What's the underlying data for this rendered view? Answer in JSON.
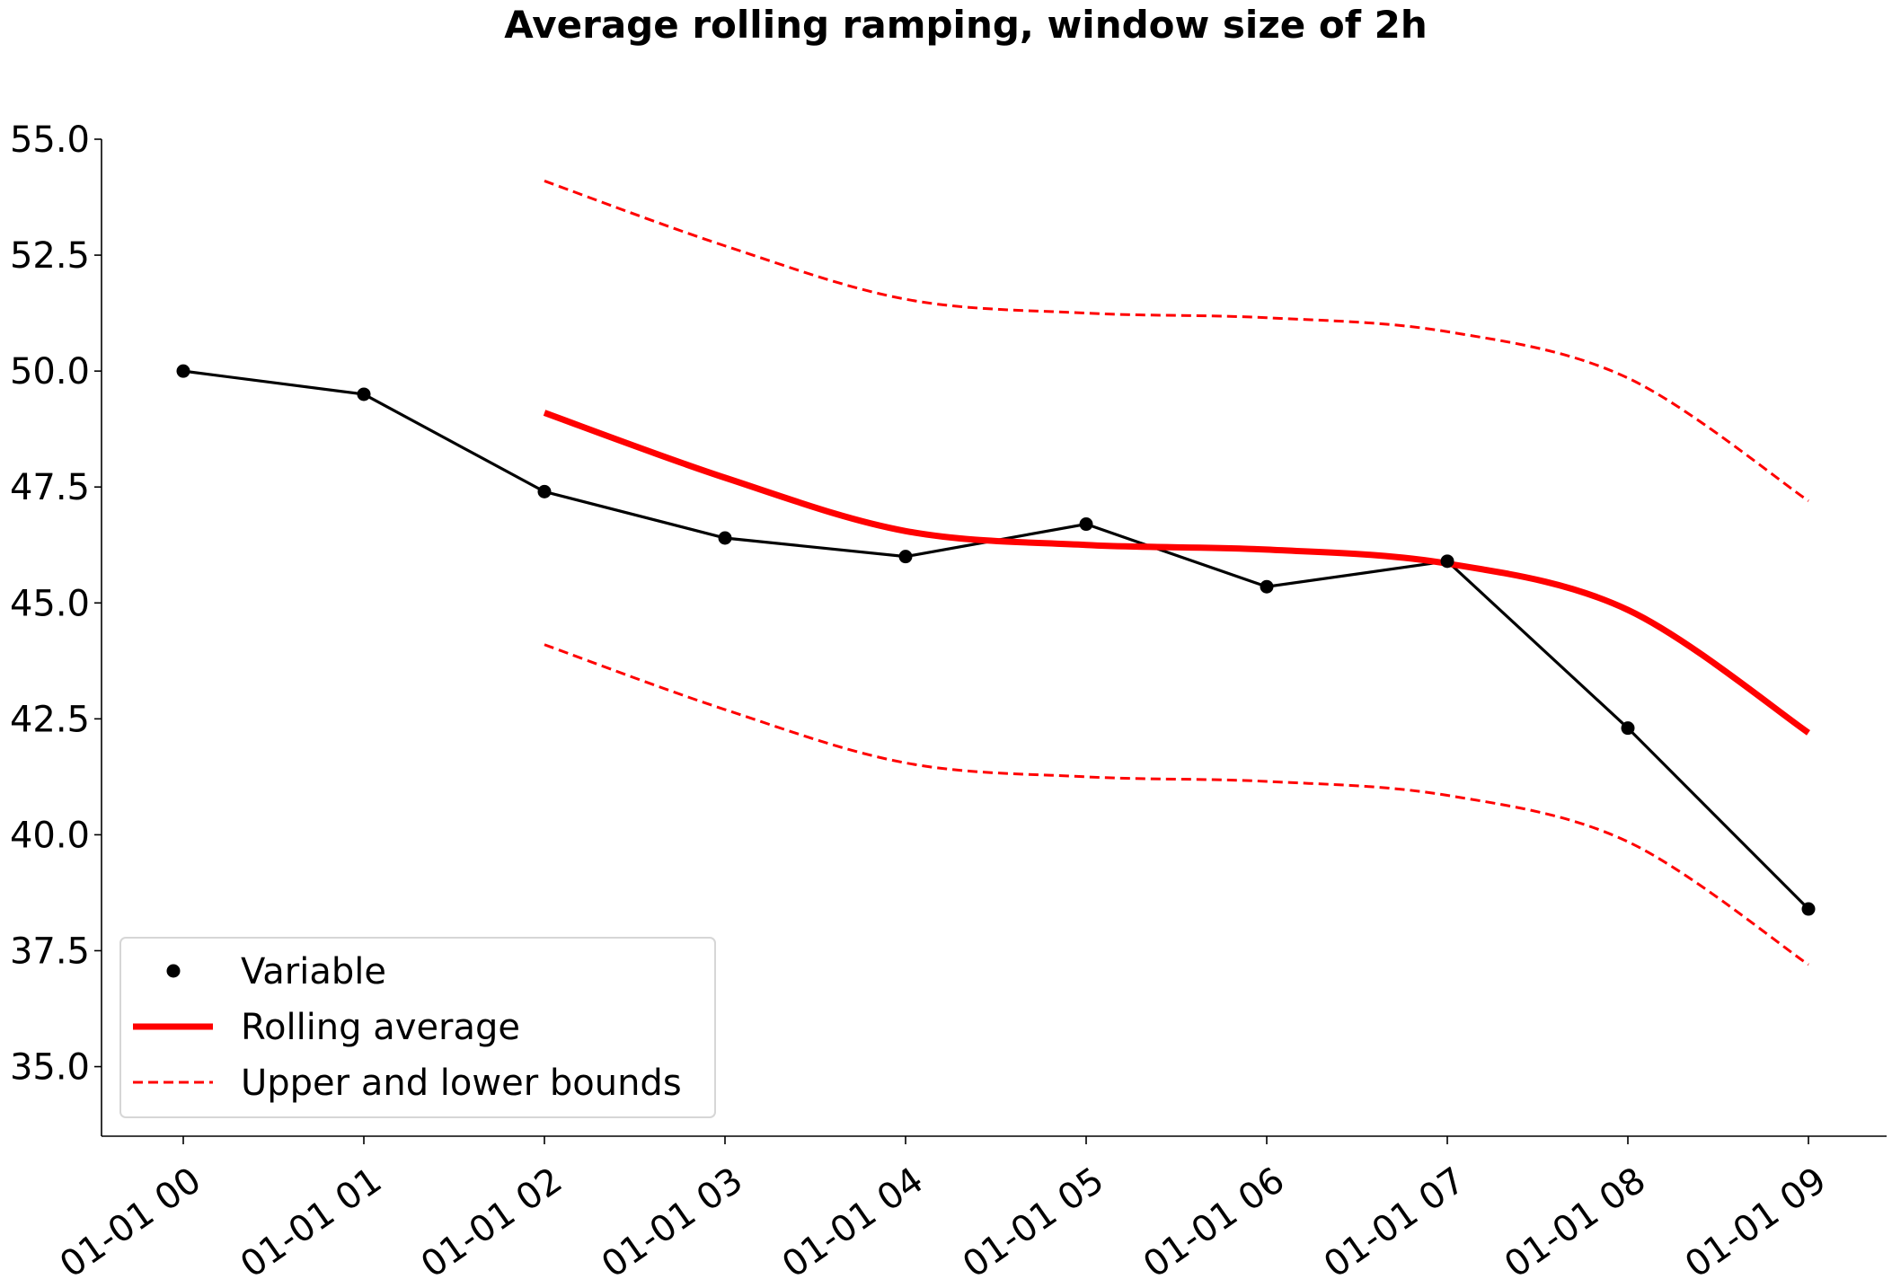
{
  "chart_data": {
    "type": "line",
    "title": "Average rolling ramping, window size of 2h",
    "xlabel": "",
    "ylabel": "",
    "x": [
      "01-01 00",
      "01-01 01",
      "01-01 02",
      "01-01 03",
      "01-01 04",
      "01-01 05",
      "01-01 06",
      "01-01 07",
      "01-01 08",
      "01-01 09"
    ],
    "ylim": [
      33.5,
      55.0
    ],
    "yticks": [
      35.0,
      37.5,
      40.0,
      42.5,
      45.0,
      47.5,
      50.0,
      52.5,
      55.0
    ],
    "ytick_labels": [
      "35.0",
      "37.5",
      "40.0",
      "42.5",
      "45.0",
      "47.5",
      "50.0",
      "52.5",
      "55.0"
    ],
    "grid": false,
    "legend_position": "lower-left",
    "series": [
      {
        "name": "Variable",
        "style": "black-line-with-dots",
        "color": "#000000",
        "values": [
          50.0,
          49.5,
          47.4,
          46.4,
          46.0,
          46.7,
          45.35,
          45.9,
          42.3,
          38.4
        ]
      },
      {
        "name": "Rolling average",
        "style": "thick-red-smooth-line",
        "color": "#ff0000",
        "values": [
          null,
          null,
          49.1,
          47.7,
          46.55,
          46.25,
          46.15,
          45.85,
          44.85,
          42.2
        ]
      },
      {
        "name": "Upper and lower bounds",
        "style": "dashed-red",
        "color": "#ff0000",
        "upper": [
          null,
          null,
          54.1,
          52.7,
          51.55,
          51.25,
          51.15,
          50.85,
          49.85,
          47.2
        ],
        "lower": [
          null,
          null,
          44.1,
          42.7,
          41.55,
          41.25,
          41.15,
          40.85,
          39.85,
          37.2
        ]
      }
    ]
  }
}
